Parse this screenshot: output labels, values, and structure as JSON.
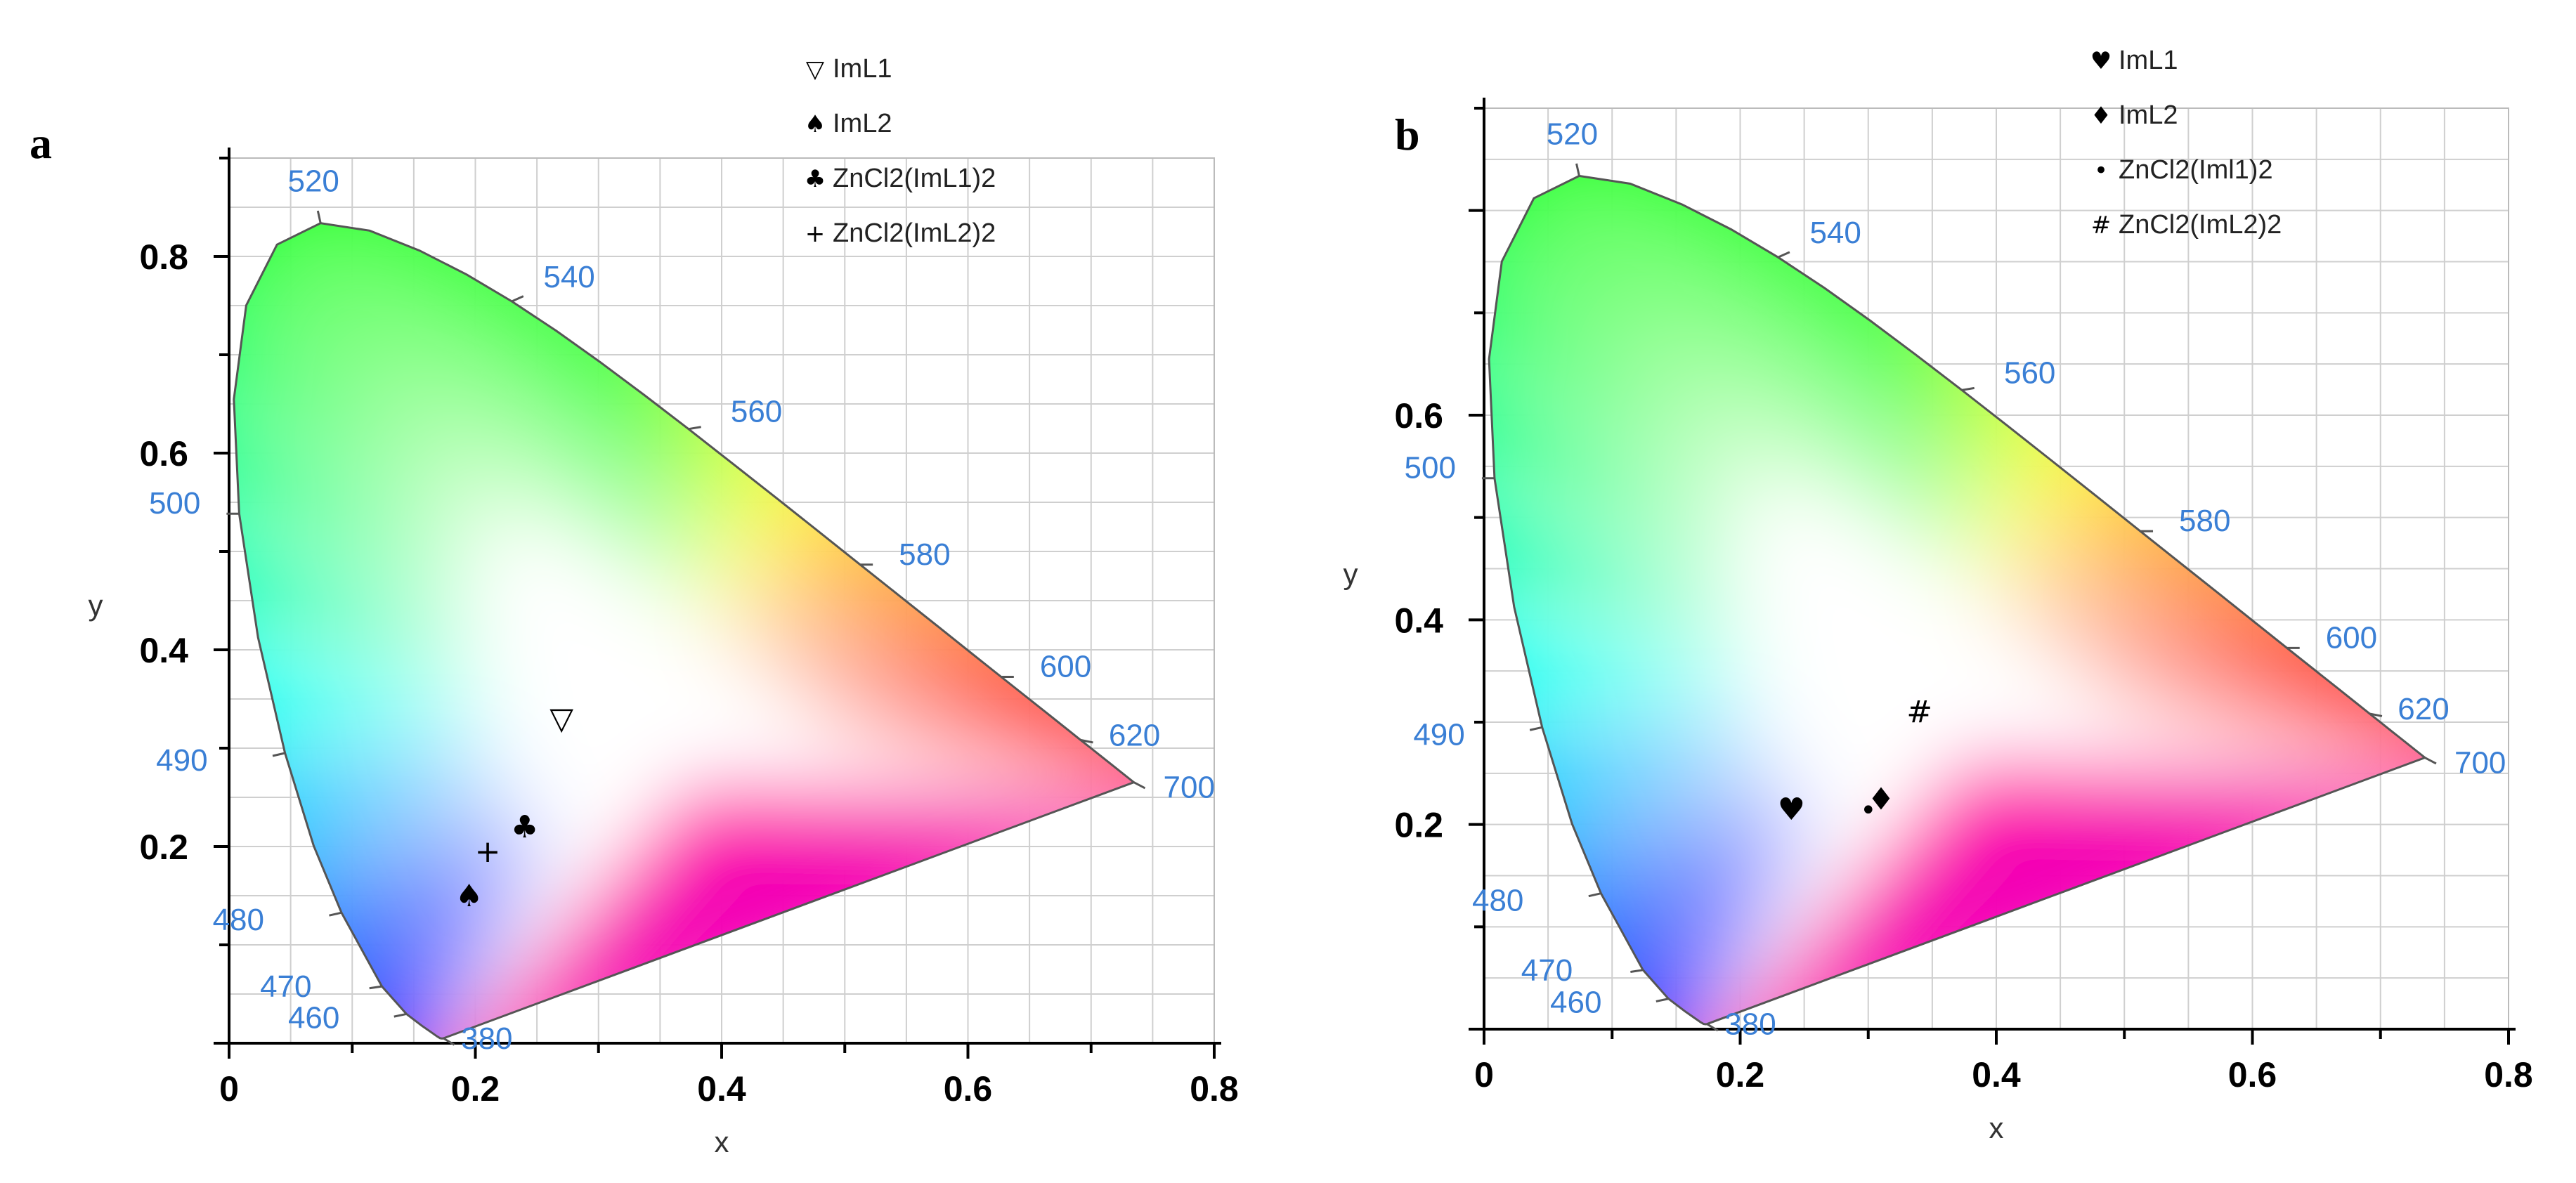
{
  "colors": {
    "grid": "#cfcfcf",
    "axis": "#000000",
    "wavelength_label": "#3a7fd5",
    "locus_outline": "#555555"
  },
  "chart_data": [
    {
      "type": "scatter",
      "panel": "a",
      "subtype": "CIE 1931 chromaticity diagram",
      "xlabel": "x",
      "ylabel": "y",
      "xlim": [
        0,
        0.8
      ],
      "ylim": [
        0,
        0.9
      ],
      "x_ticks": [
        "0",
        "0.2",
        "0.4",
        "0.6",
        "0.8"
      ],
      "x_tick_values": [
        0,
        0.2,
        0.4,
        0.6,
        0.8
      ],
      "y_ticks": [
        "0.2",
        "0.4",
        "0.6",
        "0.8"
      ],
      "y_tick_values": [
        0.2,
        0.4,
        0.6,
        0.8
      ],
      "grid": true,
      "legend_position": "top-right",
      "wavelength_labels": [
        {
          "text": "520",
          "x": 0.0743,
          "y": 0.8338
        },
        {
          "text": "540",
          "x": 0.2296,
          "y": 0.7543
        },
        {
          "text": "560",
          "x": 0.3731,
          "y": 0.6245
        },
        {
          "text": "580",
          "x": 0.5125,
          "y": 0.4866
        },
        {
          "text": "600",
          "x": 0.627,
          "y": 0.3725
        },
        {
          "text": "620",
          "x": 0.6915,
          "y": 0.3083
        },
        {
          "text": "700",
          "x": 0.7347,
          "y": 0.2653
        },
        {
          "text": "500",
          "x": 0.0082,
          "y": 0.5384
        },
        {
          "text": "490",
          "x": 0.0454,
          "y": 0.295
        },
        {
          "text": "480",
          "x": 0.0913,
          "y": 0.1327
        },
        {
          "text": "470",
          "x": 0.1241,
          "y": 0.0578
        },
        {
          "text": "460",
          "x": 0.144,
          "y": 0.0297
        },
        {
          "text": "380",
          "x": 0.1741,
          "y": 0.005
        }
      ],
      "series": [
        {
          "name": "ImL1",
          "symbol": "▽",
          "x": 0.27,
          "y": 0.33
        },
        {
          "name": "ImL2",
          "symbol": "♠",
          "x": 0.195,
          "y": 0.15
        },
        {
          "name": "ZnCl2(ImL1)2",
          "symbol": "♣",
          "x": 0.24,
          "y": 0.22
        },
        {
          "name": "ZnCl2(ImL2)2",
          "symbol": "+",
          "x": 0.21,
          "y": 0.195
        }
      ]
    },
    {
      "type": "scatter",
      "panel": "b",
      "subtype": "CIE 1931 chromaticity diagram",
      "xlabel": "x",
      "ylabel": "y",
      "xlim": [
        0,
        0.8
      ],
      "ylim": [
        0,
        0.9
      ],
      "x_ticks": [
        "0",
        "0.2",
        "0.4",
        "0.6",
        "0.8"
      ],
      "x_tick_values": [
        0,
        0.2,
        0.4,
        0.6,
        0.8
      ],
      "y_ticks": [
        "0.2",
        "0.4",
        "0.6"
      ],
      "y_tick_values": [
        0.2,
        0.4,
        0.6
      ],
      "grid": true,
      "legend_position": "top-right",
      "wavelength_labels": [
        {
          "text": "520",
          "x": 0.0743,
          "y": 0.8338
        },
        {
          "text": "540",
          "x": 0.2296,
          "y": 0.7543
        },
        {
          "text": "560",
          "x": 0.3731,
          "y": 0.6245
        },
        {
          "text": "580",
          "x": 0.5125,
          "y": 0.4866
        },
        {
          "text": "600",
          "x": 0.627,
          "y": 0.3725
        },
        {
          "text": "620",
          "x": 0.6915,
          "y": 0.3083
        },
        {
          "text": "700",
          "x": 0.7347,
          "y": 0.2653
        },
        {
          "text": "500",
          "x": 0.0082,
          "y": 0.5384
        },
        {
          "text": "490",
          "x": 0.0454,
          "y": 0.295
        },
        {
          "text": "480",
          "x": 0.0913,
          "y": 0.1327
        },
        {
          "text": "470",
          "x": 0.1241,
          "y": 0.0578
        },
        {
          "text": "460",
          "x": 0.144,
          "y": 0.0297
        },
        {
          "text": "380",
          "x": 0.1741,
          "y": 0.005
        }
      ],
      "series": [
        {
          "name": "ImL1",
          "symbol": "♥",
          "x": 0.24,
          "y": 0.215
        },
        {
          "name": "ImL2",
          "symbol": "♦",
          "x": 0.31,
          "y": 0.225
        },
        {
          "name": "ZnCl2(Iml1)2",
          "symbol": "•",
          "x": 0.3,
          "y": 0.215
        },
        {
          "name": "ZnCl2(ImL2)2",
          "symbol": "#",
          "x": 0.34,
          "y": 0.31
        }
      ]
    }
  ]
}
